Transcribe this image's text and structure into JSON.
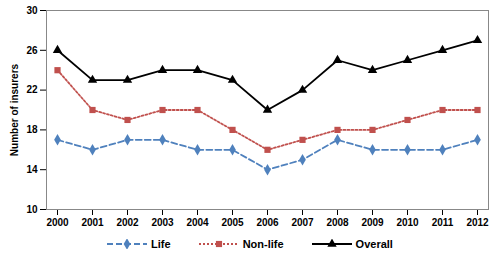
{
  "chart_data": {
    "type": "line",
    "y_label": "Number of insurers",
    "x": [
      2000,
      2001,
      2002,
      2003,
      2004,
      2005,
      2006,
      2007,
      2008,
      2009,
      2010,
      2011,
      2012
    ],
    "series": [
      {
        "name": "Life",
        "color": "#4f81bd",
        "marker": "diamond",
        "line_style": "dashed",
        "values": [
          17,
          16,
          17,
          17,
          16,
          16,
          14,
          15,
          17,
          16,
          16,
          16,
          17
        ]
      },
      {
        "name": "Non-life",
        "color": "#c0504d",
        "marker": "square",
        "line_style": "dotted",
        "values": [
          24,
          20,
          19,
          20,
          20,
          18,
          16,
          17,
          18,
          18,
          19,
          20,
          20
        ]
      },
      {
        "name": "Overall",
        "color": "#000000",
        "marker": "triangle",
        "line_style": "solid",
        "values": [
          26,
          23,
          23,
          24,
          24,
          23,
          20,
          22,
          25,
          24,
          25,
          26,
          27
        ]
      }
    ],
    "ylim": [
      10,
      30
    ],
    "yticks": [
      10,
      14,
      18,
      22,
      26,
      30
    ],
    "grid": false,
    "legend": "bottom"
  }
}
